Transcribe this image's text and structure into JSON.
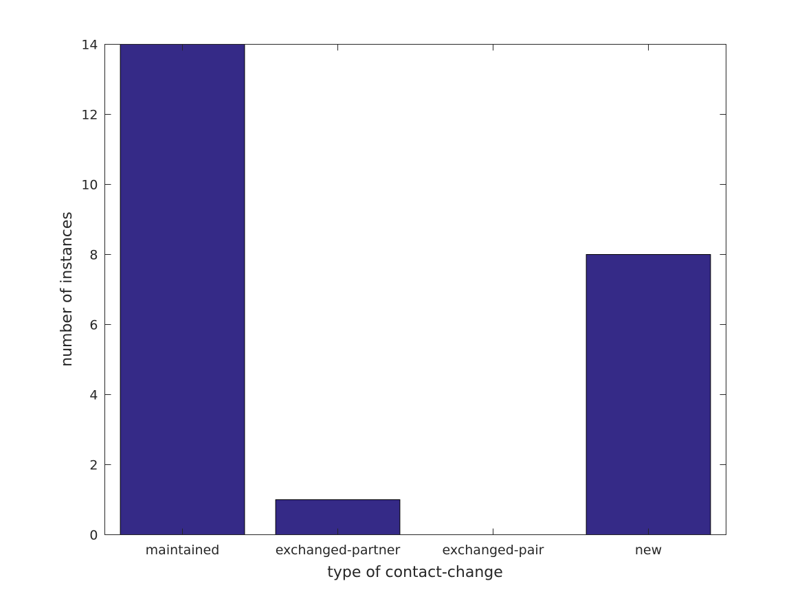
{
  "chart_data": {
    "type": "bar",
    "title": "",
    "xlabel": "type of contact-change",
    "ylabel": "number of instances",
    "categories": [
      "maintained",
      "exchanged-partner",
      "exchanged-pair",
      "new"
    ],
    "values": [
      14,
      1,
      0,
      8
    ],
    "ylim": [
      0,
      14
    ],
    "yticks": [
      0,
      2,
      4,
      6,
      8,
      10,
      12,
      14
    ],
    "grid": false,
    "legend": "none",
    "bar_color": "#352A87"
  }
}
